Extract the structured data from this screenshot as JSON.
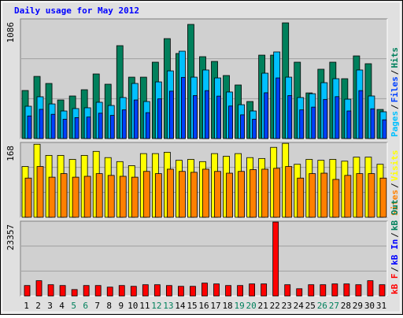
{
  "chart_data": [
    {
      "type": "bar",
      "title": "Daily usage for May 2012",
      "ylim": [
        0,
        1086
      ],
      "yticks": [
        1086
      ],
      "legend_separator": "/",
      "series": [
        {
          "name": "Pages",
          "color": "#00c0ff",
          "values": [
            293,
            379,
            314,
            250,
            272,
            279,
            329,
            300,
            372,
            500,
            336,
            514,
            614,
            793,
            557,
            622,
            550,
            422,
            307,
            250,
            593,
            786,
            557,
            372,
            407,
            507,
            543,
            357,
            622,
            386,
            243
          ]
        },
        {
          "name": "Files",
          "color": "#0040ff",
          "values": [
            205,
            265,
            220,
            175,
            190,
            195,
            230,
            210,
            260,
            350,
            235,
            360,
            430,
            555,
            390,
            435,
            385,
            295,
            215,
            175,
            415,
            550,
            390,
            260,
            285,
            355,
            380,
            250,
            435,
            270,
            170
          ]
        },
        {
          "name": "Hits",
          "color": "#00805c",
          "values": [
            436,
            564,
            500,
            350,
            386,
            443,
            586,
            493,
            843,
            557,
            557,
            693,
            907,
            772,
            1036,
            743,
            700,
            572,
            486,
            336,
            757,
            757,
            1050,
            693,
            414,
            629,
            693,
            543,
            750,
            679,
            264
          ]
        }
      ]
    },
    {
      "type": "bar",
      "ylim": [
        0,
        168
      ],
      "yticks": [
        168
      ],
      "legend_separator": "/",
      "series": [
        {
          "name": "Sites",
          "color": "#ff8000",
          "values": [
            88,
            114,
            90,
            98,
            90,
            92,
            98,
            94,
            92,
            90,
            103,
            98,
            108,
            103,
            101,
            108,
            103,
            99,
            103,
            107,
            108,
            110,
            114,
            88,
            98,
            99,
            85,
            94,
            98,
            98,
            88
          ]
        },
        {
          "name": "Visits",
          "color": "#ffff00",
          "values": [
            114,
            164,
            139,
            139,
            130,
            139,
            148,
            134,
            125,
            116,
            143,
            143,
            146,
            128,
            130,
            125,
            143,
            137,
            143,
            134,
            132,
            157,
            166,
            119,
            130,
            128,
            130,
            126,
            135,
            135,
            119
          ]
        }
      ]
    },
    {
      "type": "bar",
      "ylim": [
        0,
        23357
      ],
      "yticks": [
        23357
      ],
      "legend_separator": "/",
      "series": [
        {
          "name": "kB F",
          "color": "#ff0000",
          "values": [
            3264,
            4770,
            3515,
            3264,
            2008,
            3264,
            3264,
            2762,
            3264,
            3012,
            3515,
            3515,
            3264,
            3012,
            3012,
            4017,
            3766,
            3264,
            3264,
            3766,
            3766,
            23093,
            3515,
            2260,
            3515,
            3515,
            3766,
            3766,
            3515,
            4770,
            3515
          ]
        }
      ],
      "extra_legend": [
        {
          "name": "kB In",
          "color": "#0000ff"
        },
        {
          "name": "kB Out",
          "color": "#00805c"
        }
      ],
      "categories": [
        "1",
        "2",
        "3",
        "4",
        "5",
        "6",
        "7",
        "8",
        "9",
        "10",
        "11",
        "12",
        "13",
        "14",
        "15",
        "16",
        "17",
        "18",
        "19",
        "20",
        "21",
        "22",
        "23",
        "24",
        "25",
        "26",
        "27",
        "28",
        "29",
        "30",
        "31"
      ],
      "category_color": "#000000",
      "weekend_color": "#00805c",
      "weekends": [
        4,
        5,
        11,
        12,
        18,
        19,
        25,
        26
      ]
    }
  ]
}
